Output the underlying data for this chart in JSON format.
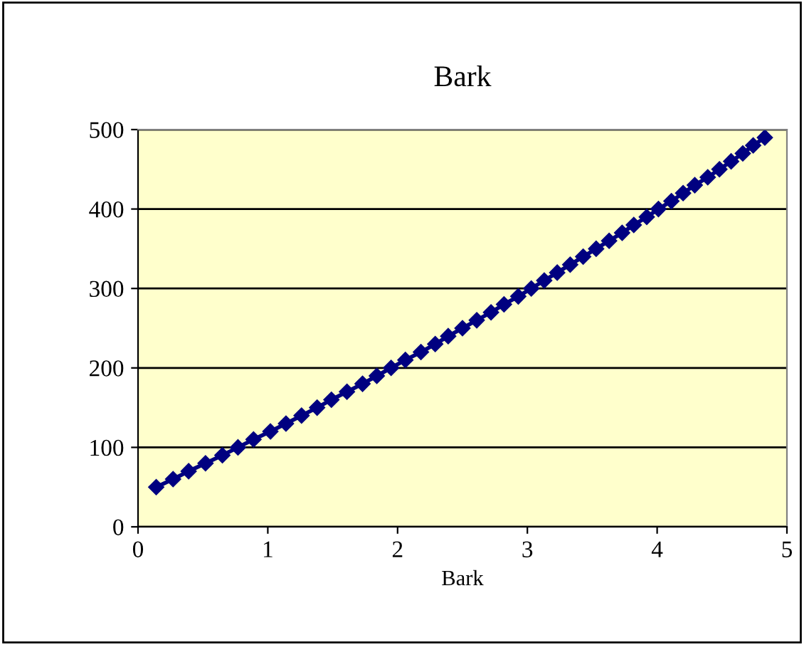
{
  "chart_data": {
    "type": "line",
    "title": "Bark",
    "xlabel": "Bark",
    "x": [
      0.14,
      0.27,
      0.39,
      0.52,
      0.65,
      0.77,
      0.89,
      1.02,
      1.14,
      1.26,
      1.38,
      1.49,
      1.61,
      1.73,
      1.84,
      1.95,
      2.06,
      2.18,
      2.29,
      2.39,
      2.5,
      2.61,
      2.72,
      2.82,
      2.93,
      3.03,
      3.13,
      3.23,
      3.33,
      3.43,
      3.53,
      3.63,
      3.73,
      3.82,
      3.92,
      4.01,
      4.11,
      4.2,
      4.29,
      4.39,
      4.48,
      4.57,
      4.66,
      4.74,
      4.83
    ],
    "series": [
      {
        "color": "#000080",
        "values": [
          50,
          60,
          70,
          80,
          90,
          100,
          110,
          120,
          130,
          140,
          150,
          160,
          170,
          180,
          190,
          200,
          210,
          220,
          230,
          240,
          250,
          260,
          270,
          280,
          290,
          300,
          310,
          320,
          330,
          340,
          350,
          360,
          370,
          380,
          390,
          400,
          410,
          420,
          430,
          440,
          450,
          460,
          470,
          480,
          490
        ]
      }
    ],
    "xlim": [
      0,
      5
    ],
    "xticks": [
      0,
      1,
      2,
      3,
      4,
      5
    ],
    "ylim": [
      0,
      500
    ],
    "yticks": [
      0,
      100,
      200,
      300,
      400,
      500
    ],
    "grid": "y",
    "legend": false,
    "marker": "diamond",
    "line_style": "solid"
  }
}
